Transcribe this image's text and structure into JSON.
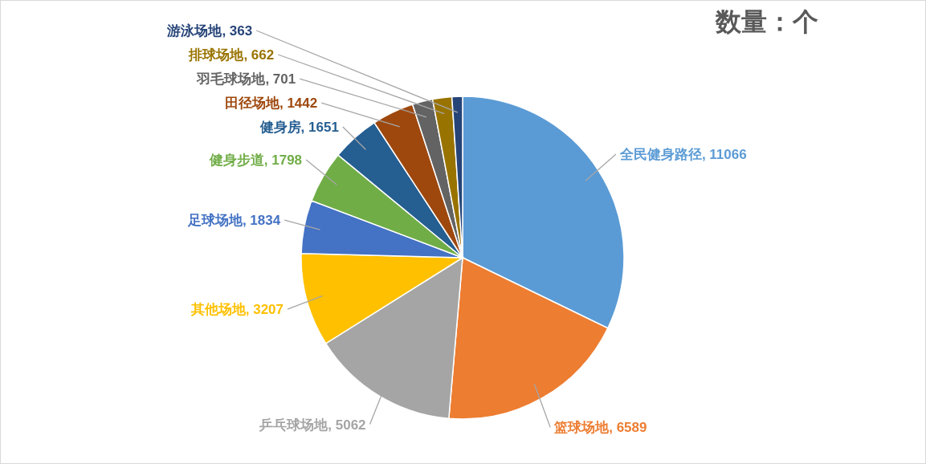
{
  "chart_data": {
    "type": "pie",
    "title": "数量：个",
    "categories": [
      "全民健身路径",
      "篮球场地",
      "乒乓球场地",
      "其他场地",
      "足球场地",
      "健身步道",
      "健身房",
      "田径场地",
      "羽毛球场地",
      "排球场地",
      "游泳场地"
    ],
    "values": [
      11066,
      6589,
      5062,
      3207,
      1834,
      1798,
      1651,
      1442,
      701,
      662,
      363
    ],
    "colors": [
      "#5b9bd5",
      "#ed7d31",
      "#a5a5a5",
      "#ffc000",
      "#4472c4",
      "#70ad47",
      "#255e91",
      "#9e480e",
      "#636363",
      "#997300",
      "#264478"
    ],
    "value_labels": [
      ", 11066",
      ", 6589",
      ", 5062",
      ", 3207",
      ", 1834",
      ", 1798",
      ", 1651",
      ", 1442",
      ", 701",
      ", 662",
      ", 363"
    ]
  }
}
